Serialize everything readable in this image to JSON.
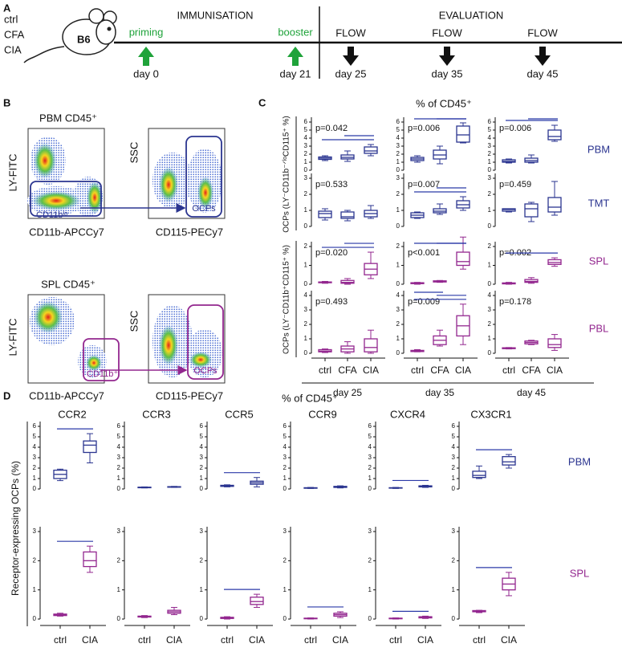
{
  "panel_a": {
    "letter": "A",
    "groups": [
      "ctrl",
      "CFA",
      "CIA"
    ],
    "mouse": "B6",
    "phases": [
      "IMMUNISATION",
      "EVALUATION"
    ],
    "events": [
      {
        "label": "priming",
        "day": "day 0"
      },
      {
        "label": "booster",
        "day": "day 21"
      },
      {
        "label": "FLOW",
        "day": "day 25"
      },
      {
        "label": "FLOW",
        "day": "day 35"
      },
      {
        "label": "FLOW",
        "day": "day 45"
      }
    ]
  },
  "panel_b": {
    "letter": "B",
    "rows": [
      {
        "title": "PBM CD45⁺",
        "y_label": "LY-FITC",
        "x_label": "CD11b-APCCy7",
        "gate": "CD11bˡᵒ",
        "y2_label": "SSC",
        "x2_label": "CD115-PECy7",
        "gate2": "OCPs"
      },
      {
        "title": "SPL CD45⁺",
        "y_label": "LY-FITC",
        "x_label": "CD11b-APCCy7",
        "gate": "CD11b⁺",
        "y2_label": "SSC",
        "x2_label": "CD115-PECy7",
        "gate2": "OCPs"
      }
    ]
  },
  "panel_c": {
    "letter": "C",
    "type": "box",
    "title": "% of CD45⁺",
    "y_titles": [
      "OCPs (LY⁻CD11b⁻ᐟˡᵒCD115⁺ %)",
      "OCPs (LY⁻CD11b⁺CD115⁺ %)"
    ],
    "categories": [
      "ctrl",
      "CFA",
      "CIA"
    ],
    "days": [
      "day 25",
      "day 35",
      "day 45"
    ],
    "rows": [
      {
        "name": "PBM",
        "color": "#2b3590",
        "ylim": [
          0,
          6
        ],
        "yticks": [
          0,
          1,
          2,
          3,
          4,
          5,
          6
        ],
        "panels": [
          {
            "p": "p=0.042",
            "boxes": [
              [
                1.2,
                1.35,
                1.5,
                1.65,
                1.8
              ],
              [
                1.1,
                1.4,
                1.6,
                1.9,
                2.4
              ],
              [
                1.8,
                2.1,
                2.4,
                2.9,
                3.2
              ]
            ]
          },
          {
            "p": "p=0.006",
            "boxes": [
              [
                1.0,
                1.2,
                1.4,
                1.6,
                1.8
              ],
              [
                0.8,
                1.4,
                1.9,
                2.5,
                3.0
              ],
              [
                3.4,
                3.5,
                4.4,
                5.5,
                5.9
              ]
            ]
          },
          {
            "p": "p=0.006",
            "boxes": [
              [
                0.9,
                1.0,
                1.1,
                1.3,
                1.4
              ],
              [
                0.9,
                1.0,
                1.2,
                1.5,
                1.9
              ],
              [
                3.6,
                3.8,
                4.2,
                5.0,
                5.6
              ]
            ]
          }
        ]
      },
      {
        "name": "TMT",
        "color": "#2b3590",
        "ylim": [
          0,
          3
        ],
        "yticks": [
          0,
          1,
          2,
          3
        ],
        "panels": [
          {
            "p": "p=0.533",
            "boxes": [
              [
                0.4,
                0.55,
                0.8,
                0.95,
                1.1
              ],
              [
                0.35,
                0.5,
                0.6,
                0.9,
                1.0
              ],
              [
                0.5,
                0.6,
                0.8,
                1.0,
                1.3
              ]
            ]
          },
          {
            "p": "p=0.007",
            "boxes": [
              [
                0.5,
                0.55,
                0.7,
                0.85,
                0.9
              ],
              [
                0.75,
                0.85,
                0.95,
                1.1,
                1.4
              ],
              [
                1.0,
                1.15,
                1.35,
                1.6,
                1.85
              ]
            ]
          },
          {
            "p": "p=0.459",
            "boxes": [
              [
                0.9,
                0.95,
                1.05,
                1.1,
                1.1
              ],
              [
                0.3,
                0.6,
                1.1,
                1.4,
                1.5
              ],
              [
                0.7,
                0.9,
                1.2,
                1.8,
                2.8
              ]
            ]
          }
        ]
      },
      {
        "name": "SPL",
        "color": "#93278f",
        "ylim": [
          0,
          2
        ],
        "yticks": [
          0,
          1,
          2
        ],
        "panels": [
          {
            "p": "p=0.020",
            "boxes": [
              [
                0.05,
                0.08,
                0.1,
                0.12,
                0.15
              ],
              [
                0.0,
                0.05,
                0.1,
                0.2,
                0.3
              ],
              [
                0.3,
                0.5,
                0.8,
                1.1,
                1.7
              ]
            ]
          },
          {
            "p": "p<0.001",
            "boxes": [
              [
                0.0,
                0.03,
                0.05,
                0.08,
                0.1
              ],
              [
                0.1,
                0.12,
                0.15,
                0.18,
                0.2
              ],
              [
                0.8,
                1.0,
                1.2,
                1.7,
                2.5
              ]
            ]
          },
          {
            "p": "p=0.002",
            "boxes": [
              [
                0.0,
                0.02,
                0.05,
                0.07,
                0.1
              ],
              [
                0.05,
                0.1,
                0.15,
                0.25,
                0.35
              ],
              [
                0.95,
                1.05,
                1.15,
                1.3,
                1.4
              ]
            ]
          }
        ]
      },
      {
        "name": "PBL",
        "color": "#93278f",
        "ylim": [
          0,
          4
        ],
        "yticks": [
          0,
          1,
          2,
          3,
          4
        ],
        "panels": [
          {
            "p": "p=0.493",
            "boxes": [
              [
                0.05,
                0.1,
                0.15,
                0.25,
                0.3
              ],
              [
                0.0,
                0.1,
                0.3,
                0.5,
                0.8
              ],
              [
                0.0,
                0.1,
                0.4,
                1.0,
                1.6
              ]
            ]
          },
          {
            "p": "p=0.009",
            "boxes": [
              [
                0.1,
                0.12,
                0.15,
                0.2,
                0.25
              ],
              [
                0.5,
                0.6,
                0.9,
                1.2,
                1.6
              ],
              [
                0.6,
                1.2,
                1.9,
                2.6,
                3.4
              ]
            ]
          },
          {
            "p": "p=0.178",
            "boxes": [
              [
                0.3,
                0.32,
                0.35,
                0.38,
                0.4
              ],
              [
                0.6,
                0.65,
                0.75,
                0.85,
                0.9
              ],
              [
                0.2,
                0.4,
                0.6,
                1.0,
                1.3
              ]
            ]
          }
        ]
      }
    ]
  },
  "panel_d": {
    "letter": "D",
    "type": "box",
    "title": "% of CD45⁺",
    "y_title": "Receptor-expressing OCPs (%)",
    "categories": [
      "ctrl",
      "CIA"
    ],
    "receptors": [
      "CCR2",
      "CCR3",
      "CCR5",
      "CCR9",
      "CXCR4",
      "CX3CR1"
    ],
    "rows": [
      {
        "name": "PBM",
        "color": "#2b3590",
        "ylim": [
          0,
          6
        ],
        "yticks": [
          0,
          1,
          2,
          3,
          4,
          5,
          6
        ],
        "panels": [
          {
            "boxes": [
              [
                0.8,
                1.0,
                1.4,
                1.8,
                1.9
              ],
              [
                2.5,
                3.5,
                4.2,
                4.6,
                5.3
              ]
            ]
          },
          {
            "boxes": [
              [
                0.1,
                0.12,
                0.15,
                0.17,
                0.2
              ],
              [
                0.15,
                0.17,
                0.2,
                0.22,
                0.25
              ]
            ]
          },
          {
            "boxes": [
              [
                0.2,
                0.25,
                0.3,
                0.35,
                0.4
              ],
              [
                0.2,
                0.45,
                0.6,
                0.75,
                1.1
              ]
            ]
          },
          {
            "boxes": [
              [
                0.05,
                0.07,
                0.1,
                0.12,
                0.15
              ],
              [
                0.1,
                0.15,
                0.2,
                0.25,
                0.3
              ]
            ]
          },
          {
            "boxes": [
              [
                0.05,
                0.08,
                0.1,
                0.12,
                0.15
              ],
              [
                0.15,
                0.2,
                0.25,
                0.3,
                0.35
              ]
            ]
          },
          {
            "boxes": [
              [
                1.0,
                1.1,
                1.3,
                1.7,
                2.2
              ],
              [
                2.0,
                2.3,
                2.6,
                3.1,
                3.3
              ]
            ]
          }
        ]
      },
      {
        "name": "SPL",
        "color": "#93278f",
        "ylim": [
          0,
          3
        ],
        "yticks": [
          0,
          1,
          2,
          3
        ],
        "panels": [
          {
            "boxes": [
              [
                0.1,
                0.12,
                0.15,
                0.17,
                0.2
              ],
              [
                1.6,
                1.8,
                2.0,
                2.3,
                2.5
              ]
            ]
          },
          {
            "boxes": [
              [
                0.05,
                0.07,
                0.08,
                0.1,
                0.12
              ],
              [
                0.15,
                0.2,
                0.25,
                0.3,
                0.4
              ]
            ]
          },
          {
            "boxes": [
              [
                0.0,
                0.02,
                0.04,
                0.06,
                0.08
              ],
              [
                0.4,
                0.5,
                0.6,
                0.75,
                0.85
              ]
            ]
          },
          {
            "boxes": [
              [
                0.0,
                0.01,
                0.02,
                0.03,
                0.04
              ],
              [
                0.05,
                0.1,
                0.15,
                0.2,
                0.25
              ]
            ]
          },
          {
            "boxes": [
              [
                0.0,
                0.01,
                0.02,
                0.03,
                0.04
              ],
              [
                0.02,
                0.04,
                0.06,
                0.08,
                0.1
              ]
            ]
          },
          {
            "boxes": [
              [
                0.22,
                0.25,
                0.27,
                0.29,
                0.3
              ],
              [
                0.8,
                1.0,
                1.2,
                1.4,
                1.6
              ]
            ]
          }
        ]
      }
    ]
  }
}
